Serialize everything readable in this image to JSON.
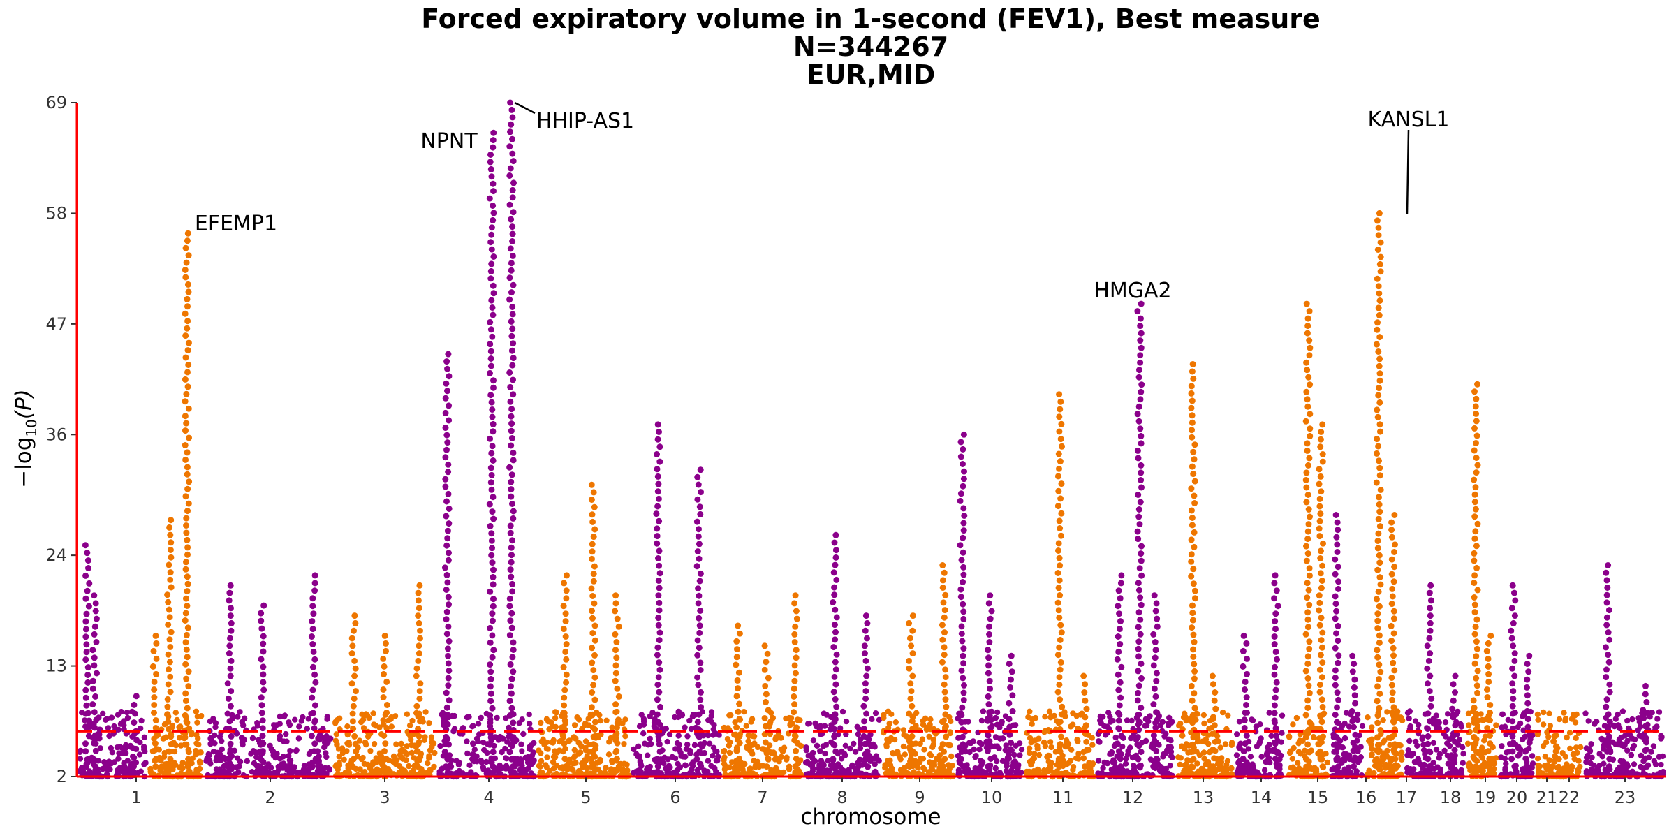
{
  "chart_data": {
    "type": "scatter",
    "subtype": "manhattan",
    "title": [
      "Forced expiratory volume in 1-second (FEV1), Best measure",
      "N=344267",
      "EUR,MID"
    ],
    "xlabel": "chromosome",
    "ylabel_main": "−log",
    "ylabel_sub": "10",
    "ylabel_paren": "(P)",
    "ylim": [
      2,
      69
    ],
    "yticks": [
      2,
      13,
      24,
      36,
      47,
      58,
      69
    ],
    "significance_line": 6.5,
    "grid": false,
    "colors": {
      "odd_chromosome": "#8B008B",
      "even_chromosome": "#EE7600",
      "threshold_line": "#FF0000",
      "axis_line": "#FF0000"
    },
    "chromosomes": [
      {
        "label": "1",
        "peaks": [
          {
            "x": 0.25,
            "y": 20
          },
          {
            "x": 0.15,
            "y": 25
          },
          {
            "x": 0.82,
            "y": 10
          }
        ]
      },
      {
        "label": "2",
        "peaks": [
          {
            "x": 0.12,
            "y": 16
          },
          {
            "x": 0.38,
            "y": 27.5
          },
          {
            "x": 0.7,
            "y": 56
          }
        ]
      },
      {
        "label": "3",
        "peaks": [
          {
            "x": 0.2,
            "y": 21
          },
          {
            "x": 0.45,
            "y": 19
          },
          {
            "x": 0.85,
            "y": 22
          }
        ]
      },
      {
        "label": "4",
        "peaks": [
          {
            "x": 0.2,
            "y": 18
          },
          {
            "x": 0.5,
            "y": 16
          },
          {
            "x": 0.82,
            "y": 21
          }
        ]
      },
      {
        "label": "5",
        "peaks": [
          {
            "x": 0.1,
            "y": 44
          },
          {
            "x": 0.55,
            "y": 66
          },
          {
            "x": 0.75,
            "y": 69
          }
        ]
      },
      {
        "label": "6",
        "peaks": [
          {
            "x": 0.3,
            "y": 22
          },
          {
            "x": 0.6,
            "y": 31
          },
          {
            "x": 0.85,
            "y": 20
          }
        ]
      },
      {
        "label": "7",
        "peaks": [
          {
            "x": 0.3,
            "y": 37
          },
          {
            "x": 0.75,
            "y": 32.5
          }
        ]
      },
      {
        "label": "8",
        "peaks": [
          {
            "x": 0.2,
            "y": 17
          },
          {
            "x": 0.55,
            "y": 15
          },
          {
            "x": 0.9,
            "y": 20
          }
        ]
      },
      {
        "label": "9",
        "peaks": [
          {
            "x": 0.4,
            "y": 26
          },
          {
            "x": 0.8,
            "y": 18
          }
        ]
      },
      {
        "label": "10",
        "peaks": [
          {
            "x": 0.4,
            "y": 18
          },
          {
            "x": 0.85,
            "y": 23
          }
        ]
      },
      {
        "label": "11",
        "peaks": [
          {
            "x": 0.1,
            "y": 36
          },
          {
            "x": 0.5,
            "y": 20
          },
          {
            "x": 0.8,
            "y": 14
          }
        ]
      },
      {
        "label": "12",
        "peaks": [
          {
            "x": 0.5,
            "y": 40
          },
          {
            "x": 0.85,
            "y": 12
          }
        ]
      },
      {
        "label": "13",
        "peaks": [
          {
            "x": 0.3,
            "y": 22
          },
          {
            "x": 0.55,
            "y": 49
          },
          {
            "x": 0.75,
            "y": 20
          }
        ]
      },
      {
        "label": "14",
        "peaks": [
          {
            "x": 0.3,
            "y": 43
          },
          {
            "x": 0.65,
            "y": 12
          }
        ]
      },
      {
        "label": "15",
        "peaks": [
          {
            "x": 0.2,
            "y": 16
          },
          {
            "x": 0.8,
            "y": 22
          }
        ]
      },
      {
        "label": "16",
        "peaks": [
          {
            "x": 0.5,
            "y": 49
          },
          {
            "x": 0.8,
            "y": 37
          }
        ]
      },
      {
        "label": "17",
        "peaks": [
          {
            "x": 0.2,
            "y": 28
          },
          {
            "x": 0.7,
            "y": 14
          }
        ]
      },
      {
        "label": "18",
        "peaks": [
          {
            "x": 0.35,
            "y": 58
          },
          {
            "x": 0.7,
            "y": 28
          }
        ]
      },
      {
        "label": "19",
        "peaks": [
          {
            "x": 0.4,
            "y": 21
          },
          {
            "x": 0.8,
            "y": 12
          }
        ]
      },
      {
        "label": "20",
        "peaks": [
          {
            "x": 0.3,
            "y": 41
          },
          {
            "x": 0.7,
            "y": 16
          }
        ]
      },
      {
        "label": "21",
        "peaks": [
          {
            "x": 0.4,
            "y": 21
          },
          {
            "x": 0.8,
            "y": 14
          }
        ]
      },
      {
        "label": "22",
        "peaks": [
          {
            "x": 0.4,
            "y": 6
          }
        ]
      },
      {
        "label": "23",
        "peaks": [
          {
            "x": 0.3,
            "y": 23
          },
          {
            "x": 0.75,
            "y": 11
          }
        ]
      }
    ],
    "annotations": [
      {
        "label": "EFEMP1"
      },
      {
        "label": "NPNT"
      },
      {
        "label": "HHIP-AS1"
      },
      {
        "label": "HMGA2"
      },
      {
        "label": "KANSL1"
      }
    ]
  }
}
